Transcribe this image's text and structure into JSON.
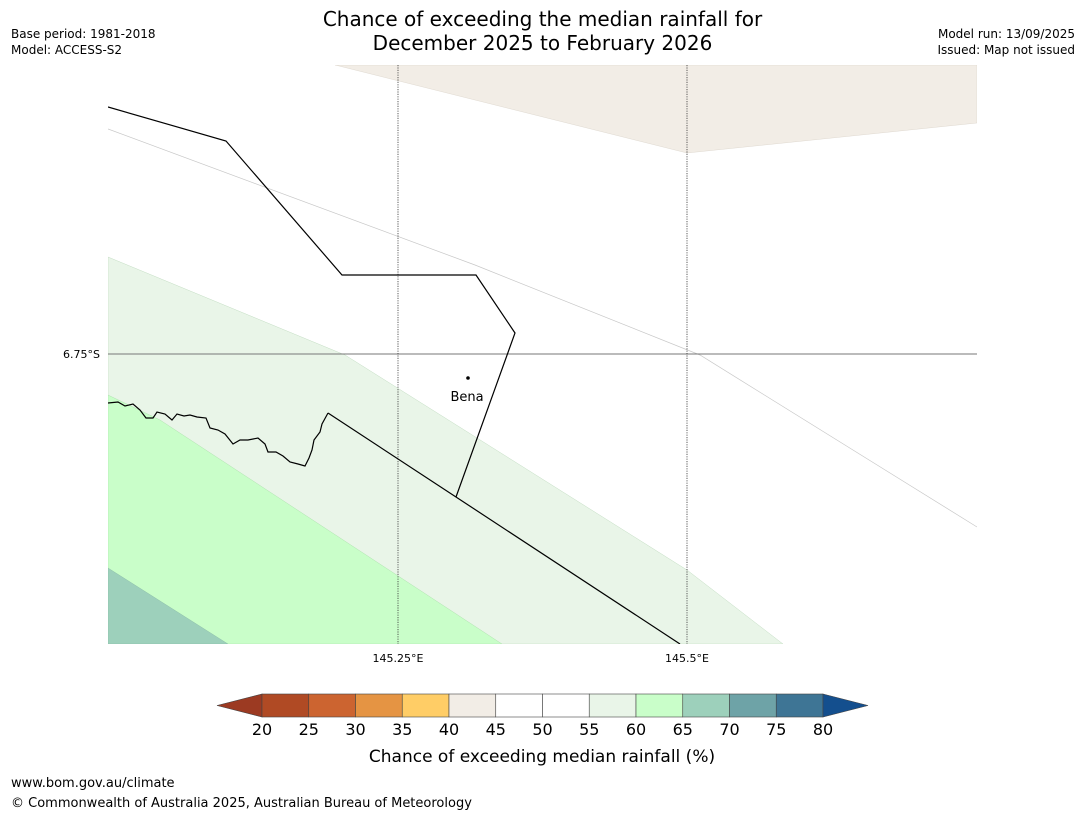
{
  "header": {
    "title_line1": "Chance of exceeding the median rainfall for",
    "title_line2": "December 2025 to February 2026",
    "base_period": "Base period: 1981-2018",
    "model": "Model: ACCESS-S2",
    "model_run": "Model run: 13/09/2025",
    "issued": "Issued: Map not issued"
  },
  "map": {
    "latitude_labels": [
      "6.75°S"
    ],
    "longitude_labels": [
      "145.25°E",
      "145.5°E"
    ],
    "places": [
      {
        "name": "Bena"
      }
    ]
  },
  "legend": {
    "title": "Chance of exceeding median rainfall (%)",
    "ticks": [
      "20",
      "25",
      "30",
      "35",
      "40",
      "45",
      "50",
      "55",
      "60",
      "65",
      "70",
      "75",
      "80"
    ],
    "colors": [
      "#9c3a22",
      "#b04a24",
      "#cc6430",
      "#e59443",
      "#ffcd66",
      "#f2ede6",
      "#ffffff",
      "#ffffff",
      "#e9f5e8",
      "#c9fec9",
      "#9dd0bb",
      "#6ea3a7",
      "#3e7595",
      "#144f8e"
    ]
  },
  "footer": {
    "url": "www.bom.gov.au/climate",
    "copyright": "© Commonwealth of Australia 2025, Australian Bureau of Meteorology"
  }
}
